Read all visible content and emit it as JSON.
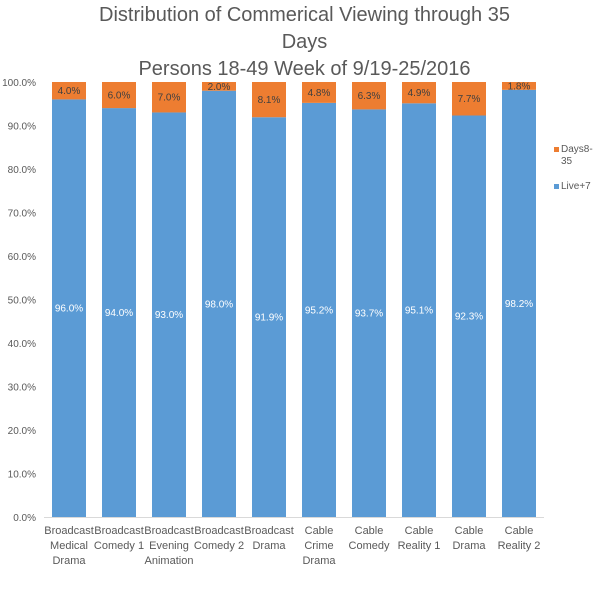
{
  "chart_data": {
    "type": "bar",
    "stacked": true,
    "title_lines": [
      "Distribution of Commerical Viewing through 35",
      "Days",
      "Persons 18-49   Week of 9/19-25/2016"
    ],
    "categories": [
      [
        "Broadcast",
        "Medical",
        "Drama"
      ],
      [
        "Broadcast",
        "Comedy 1"
      ],
      [
        "Broadcast",
        "Evening",
        "Animation"
      ],
      [
        "Broadcast",
        "Comedy 2"
      ],
      [
        "Broadcast",
        "Drama"
      ],
      [
        "Cable",
        "Crime",
        "Drama"
      ],
      [
        "Cable",
        "Comedy"
      ],
      [
        "Cable",
        "Reality 1"
      ],
      [
        "Cable",
        "Drama"
      ],
      [
        "Cable",
        "Reality 2"
      ]
    ],
    "series": [
      {
        "name": "Live+7",
        "color": "#5b9bd5",
        "values": [
          96.0,
          94.0,
          93.0,
          98.0,
          91.9,
          95.2,
          93.7,
          95.1,
          92.3,
          98.2
        ],
        "labels": [
          "96.0%",
          "94.0%",
          "93.0%",
          "98.0%",
          "91.9%",
          "95.2%",
          "93.7%",
          "95.1%",
          "92.3%",
          "98.2%"
        ]
      },
      {
        "name": "Days8-35",
        "color": "#ed7d31",
        "values": [
          4.0,
          6.0,
          7.0,
          2.0,
          8.1,
          4.8,
          6.3,
          4.9,
          7.7,
          1.8
        ],
        "labels": [
          "4.0%",
          "6.0%",
          "7.0%",
          "2.0%",
          "8.1%",
          "4.8%",
          "6.3%",
          "4.9%",
          "7.7%",
          "1.8%"
        ]
      }
    ],
    "legend_order": [
      "Days8-35",
      "Live+7"
    ],
    "legend_labels": [
      "Days8-\n35",
      "Live+7"
    ],
    "ylim": [
      0,
      100
    ],
    "yticks": [
      "0.0%",
      "10.0%",
      "20.0%",
      "30.0%",
      "40.0%",
      "50.0%",
      "60.0%",
      "70.0%",
      "80.0%",
      "90.0%",
      "100.0%"
    ],
    "grid": false,
    "legend_position": "right"
  }
}
